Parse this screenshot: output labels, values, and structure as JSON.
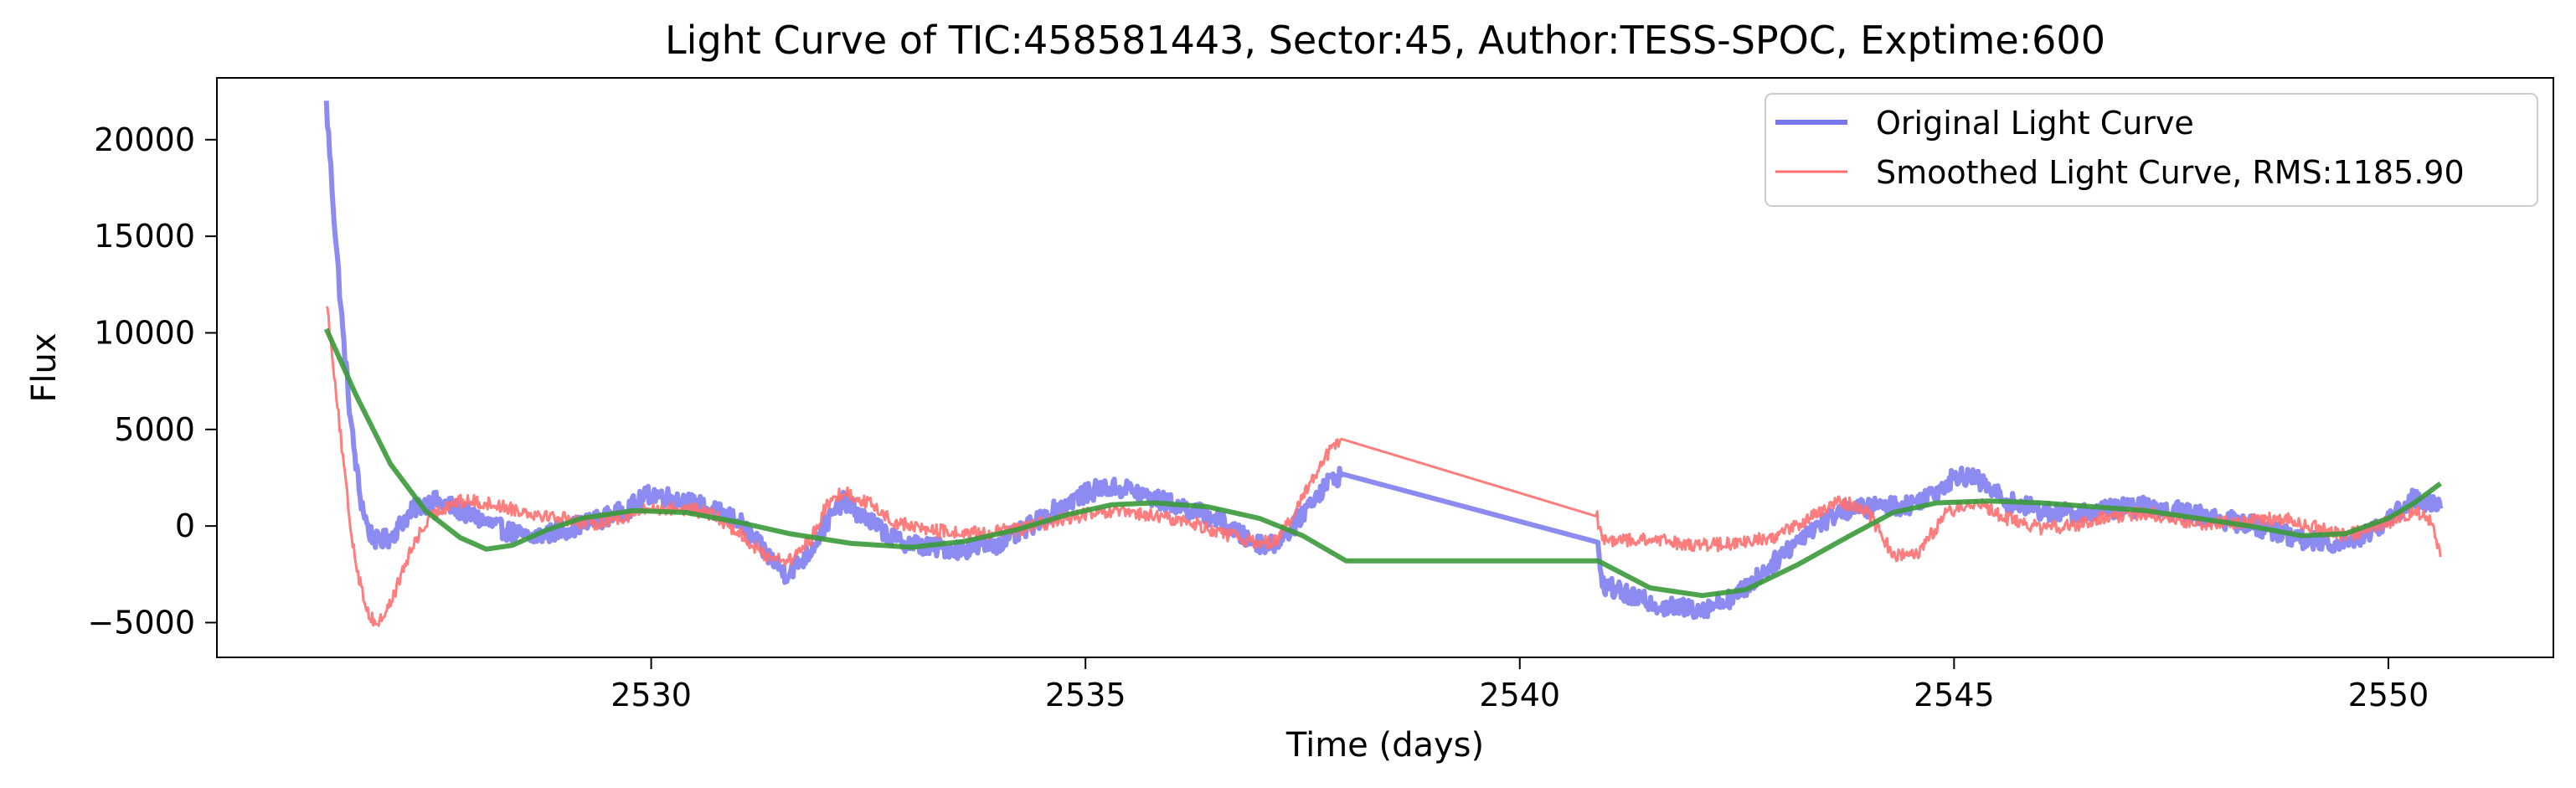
{
  "chart_data": {
    "type": "line",
    "title": "Light Curve of TIC:458581443, Sector:45, Author:TESS-SPOC, Exptime:600",
    "xlabel": "Time (days)",
    "ylabel": "Flux",
    "xlim": [
      2525.0,
      2551.9
    ],
    "ylim": [
      -6800,
      23200
    ],
    "xticks": [
      2530,
      2535,
      2540,
      2545,
      2550
    ],
    "yticks": [
      -5000,
      0,
      5000,
      10000,
      15000,
      20000
    ],
    "grid": false,
    "legend_position": "top-right",
    "series": [
      {
        "name": "Original Light Curve",
        "color": "#7777ee",
        "noise": 500,
        "points": [
          [
            2526.26,
            21800
          ],
          [
            2526.35,
            16000
          ],
          [
            2526.45,
            10000
          ],
          [
            2526.55,
            5000
          ],
          [
            2526.65,
            1500
          ],
          [
            2526.75,
            -300
          ],
          [
            2526.85,
            -800
          ],
          [
            2527.0,
            -600
          ],
          [
            2527.15,
            300
          ],
          [
            2527.3,
            1000
          ],
          [
            2527.5,
            1300
          ],
          [
            2527.7,
            1000
          ],
          [
            2527.9,
            600
          ],
          [
            2528.1,
            200
          ],
          [
            2528.3,
            -200
          ],
          [
            2528.6,
            -600
          ],
          [
            2528.9,
            -300
          ],
          [
            2529.3,
            200
          ],
          [
            2529.7,
            800
          ],
          [
            2530.0,
            1700
          ],
          [
            2530.3,
            1400
          ],
          [
            2530.6,
            1000
          ],
          [
            2531.0,
            300
          ],
          [
            2531.3,
            -1300
          ],
          [
            2531.55,
            -2500
          ],
          [
            2531.8,
            -1500
          ],
          [
            2532.0,
            0
          ],
          [
            2532.2,
            1300
          ],
          [
            2532.5,
            300
          ],
          [
            2532.8,
            -700
          ],
          [
            2533.2,
            -1100
          ],
          [
            2533.6,
            -1200
          ],
          [
            2534.0,
            -900
          ],
          [
            2534.3,
            -200
          ],
          [
            2534.6,
            700
          ],
          [
            2534.9,
            1500
          ],
          [
            2535.2,
            2000
          ],
          [
            2535.5,
            1900
          ],
          [
            2535.8,
            1400
          ],
          [
            2536.1,
            1000
          ],
          [
            2536.5,
            400
          ],
          [
            2536.9,
            -800
          ],
          [
            2537.15,
            -1000
          ],
          [
            2537.4,
            0
          ],
          [
            2537.6,
            1300
          ],
          [
            2537.8,
            2300
          ],
          [
            2537.95,
            2700
          ],
          [
            2540.9,
            -1200
          ],
          [
            2540.95,
            -3000
          ],
          [
            2541.3,
            -3700
          ],
          [
            2541.7,
            -4200
          ],
          [
            2542.1,
            -4300
          ],
          [
            2542.5,
            -3600
          ],
          [
            2542.9,
            -2000
          ],
          [
            2543.3,
            -300
          ],
          [
            2543.7,
            800
          ],
          [
            2544.1,
            1000
          ],
          [
            2544.5,
            1100
          ],
          [
            2544.85,
            2000
          ],
          [
            2545.05,
            2700
          ],
          [
            2545.3,
            2300
          ],
          [
            2545.6,
            1300
          ],
          [
            2546.0,
            800
          ],
          [
            2546.4,
            600
          ],
          [
            2546.8,
            900
          ],
          [
            2547.2,
            1000
          ],
          [
            2547.6,
            800
          ],
          [
            2548.0,
            400
          ],
          [
            2548.4,
            100
          ],
          [
            2548.8,
            -400
          ],
          [
            2549.1,
            -800
          ],
          [
            2549.4,
            -900
          ],
          [
            2549.7,
            -500
          ],
          [
            2550.0,
            300
          ],
          [
            2550.3,
            1500
          ],
          [
            2550.6,
            900
          ]
        ]
      },
      {
        "name": "Smoothed Light Curve, RMS:1185.90",
        "color": "#ff6f6f",
        "noise": 350,
        "points": [
          [
            2526.26,
            11700
          ],
          [
            2526.35,
            8000
          ],
          [
            2526.45,
            3500
          ],
          [
            2526.55,
            -500
          ],
          [
            2526.65,
            -3000
          ],
          [
            2526.75,
            -4600
          ],
          [
            2526.85,
            -5100
          ],
          [
            2527.0,
            -4000
          ],
          [
            2527.15,
            -2200
          ],
          [
            2527.3,
            -600
          ],
          [
            2527.5,
            600
          ],
          [
            2527.7,
            1200
          ],
          [
            2527.9,
            1300
          ],
          [
            2528.2,
            1100
          ],
          [
            2528.6,
            700
          ],
          [
            2529.0,
            400
          ],
          [
            2529.3,
            100
          ],
          [
            2529.7,
            500
          ],
          [
            2530.0,
            900
          ],
          [
            2530.4,
            900
          ],
          [
            2530.7,
            600
          ],
          [
            2531.0,
            -300
          ],
          [
            2531.3,
            -1500
          ],
          [
            2531.6,
            -1800
          ],
          [
            2531.85,
            -600
          ],
          [
            2532.0,
            900
          ],
          [
            2532.2,
            1800
          ],
          [
            2532.5,
            1200
          ],
          [
            2532.8,
            200
          ],
          [
            2533.2,
            -200
          ],
          [
            2533.6,
            -400
          ],
          [
            2534.0,
            -300
          ],
          [
            2534.3,
            -100
          ],
          [
            2534.7,
            300
          ],
          [
            2535.0,
            600
          ],
          [
            2535.4,
            700
          ],
          [
            2535.8,
            500
          ],
          [
            2536.2,
            200
          ],
          [
            2536.6,
            -400
          ],
          [
            2537.0,
            -900
          ],
          [
            2537.2,
            -700
          ],
          [
            2537.4,
            500
          ],
          [
            2537.6,
            2400
          ],
          [
            2537.8,
            3800
          ],
          [
            2537.95,
            4500
          ],
          [
            2540.88,
            700
          ],
          [
            2540.95,
            -800
          ],
          [
            2541.3,
            -700
          ],
          [
            2541.7,
            -800
          ],
          [
            2542.1,
            -1000
          ],
          [
            2542.5,
            -900
          ],
          [
            2542.9,
            -600
          ],
          [
            2543.3,
            300
          ],
          [
            2543.7,
            1300
          ],
          [
            2544.0,
            800
          ],
          [
            2544.3,
            -1500
          ],
          [
            2544.6,
            -1300
          ],
          [
            2544.9,
            600
          ],
          [
            2545.2,
            1300
          ],
          [
            2545.6,
            400
          ],
          [
            2546.0,
            -100
          ],
          [
            2546.4,
            0
          ],
          [
            2546.8,
            500
          ],
          [
            2547.2,
            700
          ],
          [
            2547.6,
            300
          ],
          [
            2548.0,
            100
          ],
          [
            2548.4,
            300
          ],
          [
            2548.8,
            400
          ],
          [
            2549.1,
            0
          ],
          [
            2549.5,
            -500
          ],
          [
            2549.9,
            0
          ],
          [
            2550.3,
            800
          ],
          [
            2550.5,
            300
          ],
          [
            2550.6,
            -1600
          ]
        ]
      },
      {
        "name": "",
        "color": "#3a9a3a",
        "noise": 0,
        "points": [
          [
            2526.26,
            10200
          ],
          [
            2526.6,
            6800
          ],
          [
            2527.0,
            3200
          ],
          [
            2527.4,
            800
          ],
          [
            2527.8,
            -600
          ],
          [
            2528.1,
            -1200
          ],
          [
            2528.4,
            -1000
          ],
          [
            2528.8,
            -200
          ],
          [
            2529.2,
            400
          ],
          [
            2529.8,
            800
          ],
          [
            2530.4,
            700
          ],
          [
            2531.0,
            200
          ],
          [
            2531.6,
            -400
          ],
          [
            2532.3,
            -900
          ],
          [
            2533.0,
            -1100
          ],
          [
            2533.6,
            -800
          ],
          [
            2534.2,
            -200
          ],
          [
            2534.8,
            600
          ],
          [
            2535.3,
            1100
          ],
          [
            2535.8,
            1200
          ],
          [
            2536.4,
            1000
          ],
          [
            2537.0,
            400
          ],
          [
            2537.5,
            -500
          ],
          [
            2538.0,
            -1800
          ],
          [
            2540.9,
            -1800
          ],
          [
            2541.5,
            -3200
          ],
          [
            2542.1,
            -3600
          ],
          [
            2542.6,
            -3300
          ],
          [
            2543.2,
            -2000
          ],
          [
            2543.8,
            -500
          ],
          [
            2544.3,
            700
          ],
          [
            2544.8,
            1200
          ],
          [
            2545.4,
            1300
          ],
          [
            2546.0,
            1200
          ],
          [
            2546.6,
            1000
          ],
          [
            2547.2,
            800
          ],
          [
            2547.8,
            400
          ],
          [
            2548.4,
            0
          ],
          [
            2549.0,
            -500
          ],
          [
            2549.5,
            -400
          ],
          [
            2550.0,
            400
          ],
          [
            2550.3,
            1200
          ],
          [
            2550.6,
            2200
          ]
        ]
      }
    ]
  }
}
